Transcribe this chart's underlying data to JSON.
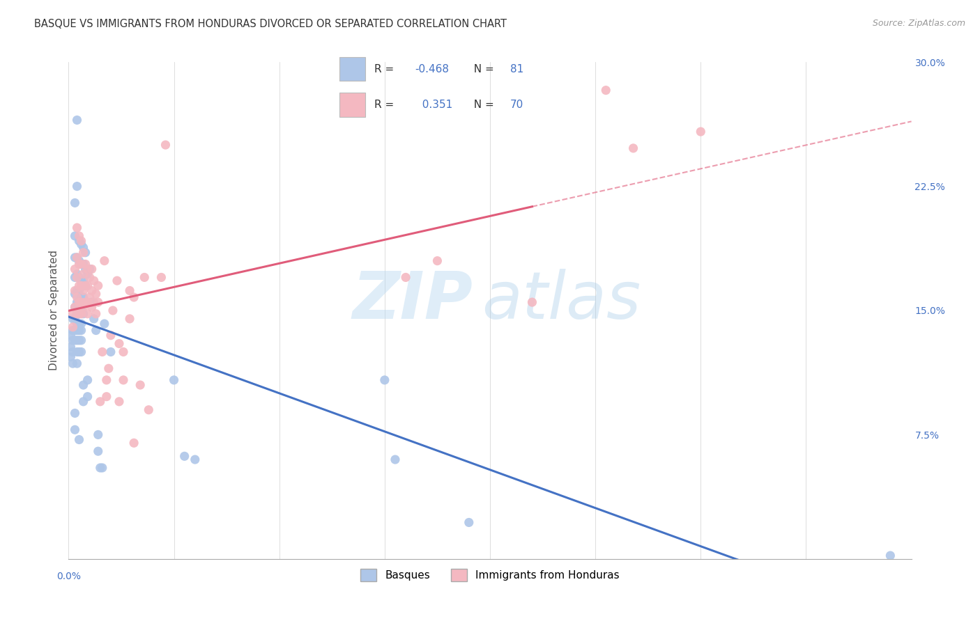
{
  "title": "BASQUE VS IMMIGRANTS FROM HONDURAS DIVORCED OR SEPARATED CORRELATION CHART",
  "source": "Source: ZipAtlas.com",
  "ylabel": "Divorced or Separated",
  "right_yticks": [
    "30.0%",
    "22.5%",
    "15.0%",
    "7.5%"
  ],
  "right_ytick_vals": [
    0.3,
    0.225,
    0.15,
    0.075
  ],
  "basque_color": "#aec6e8",
  "honduras_color": "#f4b8c1",
  "basque_line_color": "#4472c4",
  "honduras_line_color": "#e05c7a",
  "watermark_zip": "ZIP",
  "watermark_atlas": "atlas",
  "basque_R": -0.468,
  "basque_N": 81,
  "honduras_R": 0.351,
  "honduras_N": 70,
  "basque_points": [
    [
      0.001,
      0.135
    ],
    [
      0.001,
      0.128
    ],
    [
      0.001,
      0.122
    ],
    [
      0.002,
      0.145
    ],
    [
      0.002,
      0.138
    ],
    [
      0.002,
      0.132
    ],
    [
      0.002,
      0.125
    ],
    [
      0.002,
      0.118
    ],
    [
      0.003,
      0.215
    ],
    [
      0.003,
      0.195
    ],
    [
      0.003,
      0.182
    ],
    [
      0.003,
      0.17
    ],
    [
      0.003,
      0.16
    ],
    [
      0.003,
      0.152
    ],
    [
      0.003,
      0.145
    ],
    [
      0.003,
      0.138
    ],
    [
      0.003,
      0.132
    ],
    [
      0.003,
      0.088
    ],
    [
      0.003,
      0.078
    ],
    [
      0.004,
      0.265
    ],
    [
      0.004,
      0.225
    ],
    [
      0.004,
      0.182
    ],
    [
      0.004,
      0.172
    ],
    [
      0.004,
      0.162
    ],
    [
      0.004,
      0.155
    ],
    [
      0.004,
      0.148
    ],
    [
      0.004,
      0.142
    ],
    [
      0.004,
      0.138
    ],
    [
      0.004,
      0.132
    ],
    [
      0.004,
      0.125
    ],
    [
      0.004,
      0.118
    ],
    [
      0.005,
      0.192
    ],
    [
      0.005,
      0.18
    ],
    [
      0.005,
      0.17
    ],
    [
      0.005,
      0.162
    ],
    [
      0.005,
      0.155
    ],
    [
      0.005,
      0.148
    ],
    [
      0.005,
      0.142
    ],
    [
      0.005,
      0.138
    ],
    [
      0.005,
      0.132
    ],
    [
      0.005,
      0.125
    ],
    [
      0.005,
      0.072
    ],
    [
      0.006,
      0.19
    ],
    [
      0.006,
      0.178
    ],
    [
      0.006,
      0.168
    ],
    [
      0.006,
      0.158
    ],
    [
      0.006,
      0.15
    ],
    [
      0.006,
      0.142
    ],
    [
      0.006,
      0.138
    ],
    [
      0.006,
      0.132
    ],
    [
      0.006,
      0.125
    ],
    [
      0.007,
      0.188
    ],
    [
      0.007,
      0.178
    ],
    [
      0.007,
      0.168
    ],
    [
      0.007,
      0.158
    ],
    [
      0.007,
      0.148
    ],
    [
      0.007,
      0.105
    ],
    [
      0.007,
      0.095
    ],
    [
      0.008,
      0.185
    ],
    [
      0.008,
      0.175
    ],
    [
      0.008,
      0.165
    ],
    [
      0.009,
      0.172
    ],
    [
      0.009,
      0.108
    ],
    [
      0.009,
      0.098
    ],
    [
      0.01,
      0.175
    ],
    [
      0.011,
      0.155
    ],
    [
      0.012,
      0.145
    ],
    [
      0.013,
      0.138
    ],
    [
      0.014,
      0.075
    ],
    [
      0.014,
      0.065
    ],
    [
      0.015,
      0.055
    ],
    [
      0.016,
      0.055
    ],
    [
      0.017,
      0.142
    ],
    [
      0.02,
      0.125
    ],
    [
      0.05,
      0.108
    ],
    [
      0.055,
      0.062
    ],
    [
      0.06,
      0.06
    ],
    [
      0.15,
      0.108
    ],
    [
      0.155,
      0.06
    ],
    [
      0.19,
      0.022
    ],
    [
      0.39,
      0.002
    ]
  ],
  "honduras_points": [
    [
      0.002,
      0.148
    ],
    [
      0.002,
      0.14
    ],
    [
      0.003,
      0.175
    ],
    [
      0.003,
      0.162
    ],
    [
      0.003,
      0.152
    ],
    [
      0.004,
      0.2
    ],
    [
      0.004,
      0.182
    ],
    [
      0.004,
      0.17
    ],
    [
      0.004,
      0.158
    ],
    [
      0.004,
      0.148
    ],
    [
      0.005,
      0.195
    ],
    [
      0.005,
      0.178
    ],
    [
      0.005,
      0.165
    ],
    [
      0.005,
      0.155
    ],
    [
      0.005,
      0.148
    ],
    [
      0.006,
      0.192
    ],
    [
      0.006,
      0.178
    ],
    [
      0.006,
      0.165
    ],
    [
      0.006,
      0.155
    ],
    [
      0.006,
      0.148
    ],
    [
      0.007,
      0.185
    ],
    [
      0.007,
      0.172
    ],
    [
      0.007,
      0.162
    ],
    [
      0.007,
      0.152
    ],
    [
      0.008,
      0.178
    ],
    [
      0.008,
      0.165
    ],
    [
      0.008,
      0.155
    ],
    [
      0.009,
      0.175
    ],
    [
      0.009,
      0.165
    ],
    [
      0.009,
      0.155
    ],
    [
      0.009,
      0.148
    ],
    [
      0.01,
      0.17
    ],
    [
      0.01,
      0.158
    ],
    [
      0.011,
      0.175
    ],
    [
      0.011,
      0.162
    ],
    [
      0.011,
      0.152
    ],
    [
      0.012,
      0.168
    ],
    [
      0.012,
      0.155
    ],
    [
      0.013,
      0.16
    ],
    [
      0.013,
      0.148
    ],
    [
      0.014,
      0.165
    ],
    [
      0.014,
      0.155
    ],
    [
      0.015,
      0.095
    ],
    [
      0.016,
      0.125
    ],
    [
      0.017,
      0.18
    ],
    [
      0.018,
      0.108
    ],
    [
      0.018,
      0.098
    ],
    [
      0.019,
      0.115
    ],
    [
      0.02,
      0.135
    ],
    [
      0.021,
      0.15
    ],
    [
      0.023,
      0.168
    ],
    [
      0.024,
      0.13
    ],
    [
      0.024,
      0.095
    ],
    [
      0.026,
      0.125
    ],
    [
      0.026,
      0.108
    ],
    [
      0.029,
      0.162
    ],
    [
      0.029,
      0.145
    ],
    [
      0.031,
      0.158
    ],
    [
      0.031,
      0.07
    ],
    [
      0.034,
      0.105
    ],
    [
      0.036,
      0.17
    ],
    [
      0.038,
      0.09
    ],
    [
      0.044,
      0.17
    ],
    [
      0.046,
      0.25
    ],
    [
      0.16,
      0.17
    ],
    [
      0.175,
      0.18
    ],
    [
      0.22,
      0.155
    ],
    [
      0.255,
      0.283
    ],
    [
      0.268,
      0.248
    ],
    [
      0.3,
      0.258
    ]
  ],
  "xlim": [
    0.0,
    0.4
  ],
  "ylim": [
    0.0,
    0.3
  ],
  "background_color": "#ffffff",
  "grid_color": "#d0d0d0"
}
